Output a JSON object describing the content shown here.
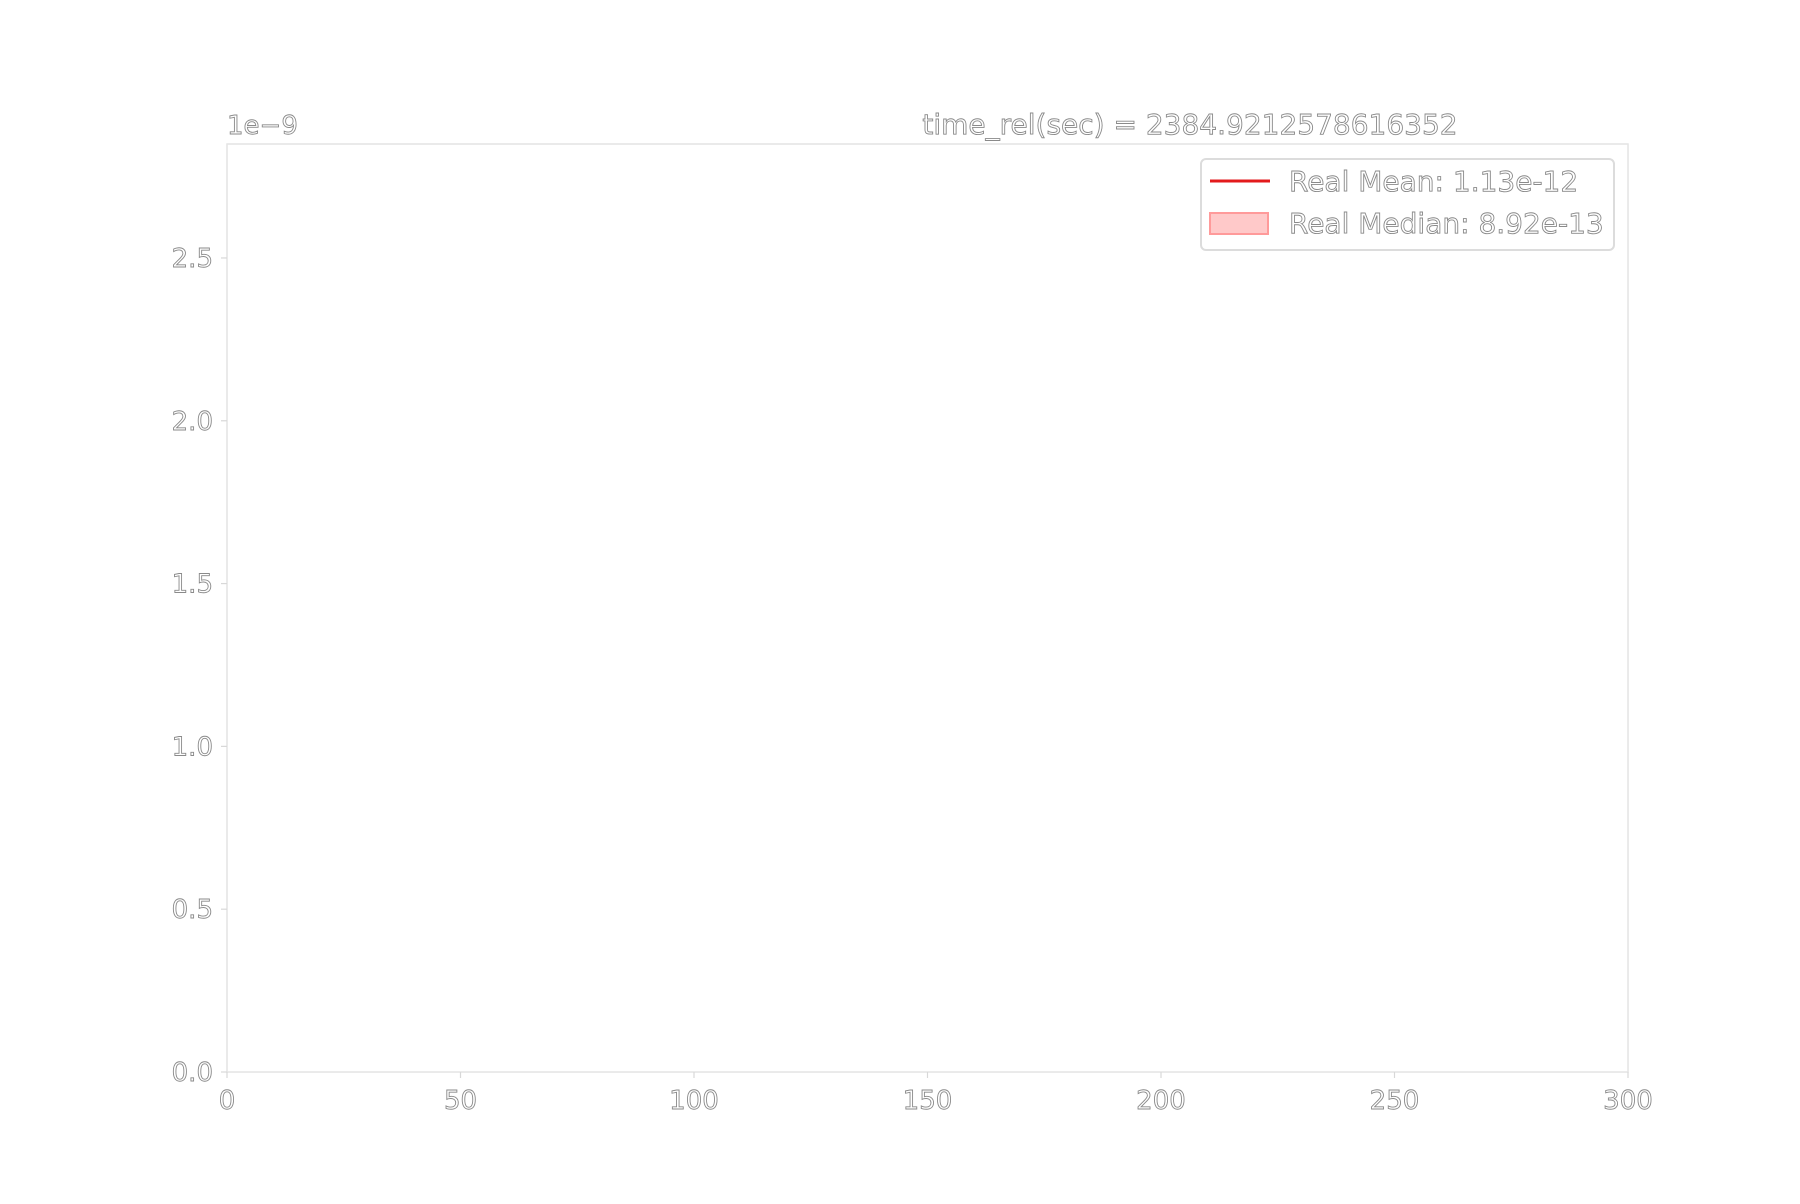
{
  "chart_data": {
    "type": "line",
    "title": "time_rel(sec) = 2384.9212578616352",
    "offset_label": "1e−9",
    "xlabel": "",
    "ylabel": "",
    "xlim": [
      0,
      300
    ],
    "ylim": [
      0,
      2.85
    ],
    "x_ticks": [
      "0",
      "50",
      "100",
      "150",
      "200",
      "250",
      "300"
    ],
    "x_tick_values": [
      0,
      50,
      100,
      150,
      200,
      250,
      300
    ],
    "y_ticks": [
      "0.0",
      "0.5",
      "1.0",
      "1.5",
      "2.0",
      "2.5"
    ],
    "y_tick_values": [
      0.0,
      0.5,
      1.0,
      1.5,
      2.0,
      2.5
    ],
    "grid": false,
    "legend_position": "top-right",
    "series": [
      {
        "name": "Real Mean: 1.13e-12",
        "kind": "line",
        "color": "#e31a1c",
        "values": []
      },
      {
        "name": "Real Median: 8.92e-13",
        "kind": "band",
        "color": "#ffc9c9",
        "edge_color": "#ff9a9a",
        "values": []
      }
    ]
  }
}
